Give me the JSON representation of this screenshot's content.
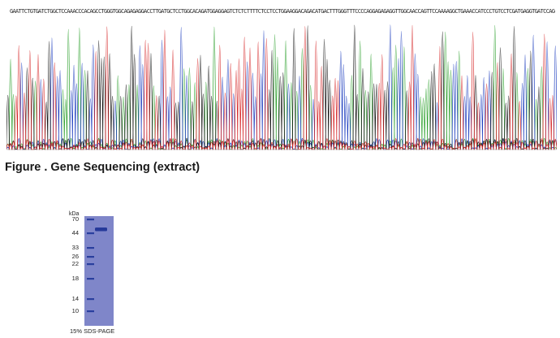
{
  "sequence": {
    "bases": "GAATTCTGTGATCTGGCTCCAAACCCACAGCCTGGGTGGCAGAGAGGACCTTGATGCTCCTGGCACAGATGGAGGAGTCTCTCTTTTCTCCTCCTGGAAGGACAGACATGACTTTGGGTTTCCCCAGGAGAGAGGTTGGCAACCAGTTCCAAAAGGCTGAAACCATCCCTGTCCTCGATGAGGTGATCCAGCAGATCTTC"
  },
  "figure_caption": "Figure . Gene Sequencing (extract)",
  "gel": {
    "unit_label": "kDa",
    "markers": [
      "70",
      "44",
      "33",
      "26",
      "22",
      "18",
      "14",
      "10"
    ],
    "caption": "15% SDS-PAGE"
  },
  "colors": {
    "A": "#2ca02c",
    "C": "#1f3fbf",
    "G": "#111111",
    "T": "#d62728",
    "gel_bg": "#7f86c9",
    "gel_band": "#2a3f9e"
  }
}
